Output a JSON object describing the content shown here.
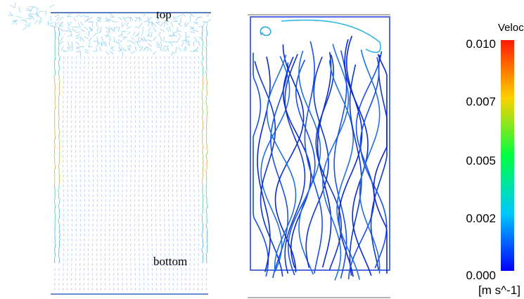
{
  "vector_panel": {
    "top_label": "top",
    "bottom_label": "bottom"
  },
  "colorbar": {
    "title": "Velocity",
    "ticks": [
      "0.010",
      "0.007",
      "0.005",
      "0.002",
      "0.000"
    ],
    "unit": "[m s^-1]"
  }
}
